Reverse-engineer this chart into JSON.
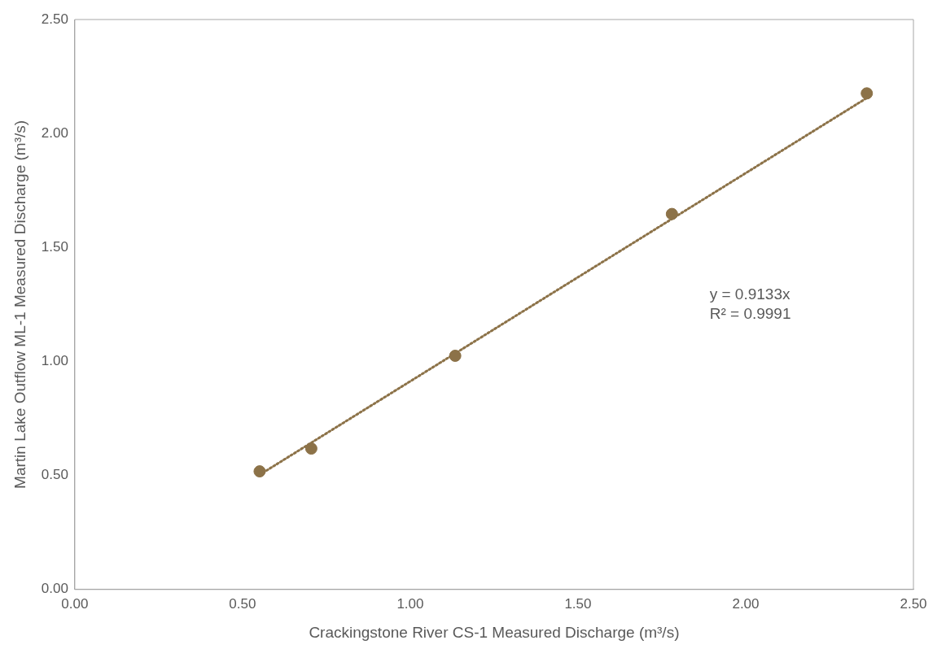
{
  "chart_data": {
    "type": "scatter",
    "xlabel": "Crackingstone River CS-1 Measured Discharge (m³/s)",
    "ylabel": "Martin Lake Outflow ML-1 Measured Discharge (m³/s)",
    "series": [
      {
        "type": "scatter",
        "color": "#8c7248",
        "marker": "circle",
        "x": [
          0.551,
          0.705,
          1.134,
          1.78,
          2.361
        ],
        "values": [
          0.518,
          0.618,
          1.025,
          1.647,
          2.176
        ]
      },
      {
        "type": "line",
        "color": "#8c7248",
        "marker": "none",
        "line_style": "dotted",
        "x": [
          0.551,
          2.361
        ],
        "values": [
          0.503,
          2.156
        ]
      }
    ],
    "xlim": [
      0,
      2.5
    ],
    "ylim": [
      0,
      2.5
    ],
    "xticks": [
      {
        "value": 0,
        "label": "0.00"
      },
      {
        "value": 0.5,
        "label": "0.50"
      },
      {
        "value": 1,
        "label": "1.00"
      },
      {
        "value": 1.5,
        "label": "1.50"
      },
      {
        "value": 2,
        "label": "2.00"
      },
      {
        "value": 2.5,
        "label": "2.50"
      }
    ],
    "yticks": [
      {
        "value": 0,
        "label": "0.00"
      },
      {
        "value": 0.5,
        "label": "0.50"
      },
      {
        "value": 1,
        "label": "1.00"
      },
      {
        "value": 1.5,
        "label": "1.50"
      },
      {
        "value": 2,
        "label": "2.00"
      },
      {
        "value": 2.5,
        "label": "2.50"
      }
    ],
    "grid": false,
    "legend": false,
    "annotations": [
      "y = 0.9133x",
      "R² = 0.9991"
    ]
  }
}
